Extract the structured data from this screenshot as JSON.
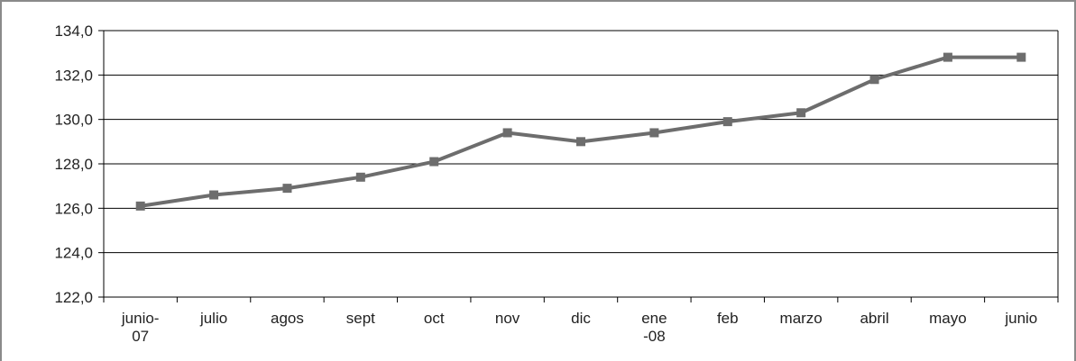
{
  "chart_data": {
    "type": "line",
    "title": "",
    "xlabel": "",
    "ylabel": "",
    "categories": [
      [
        "junio-",
        "07"
      ],
      [
        "julio"
      ],
      [
        "agos"
      ],
      [
        "sept"
      ],
      [
        "oct"
      ],
      [
        "nov"
      ],
      [
        "dic"
      ],
      [
        "ene",
        "-08"
      ],
      [
        "feb"
      ],
      [
        "marzo"
      ],
      [
        "abril"
      ],
      [
        "mayo"
      ],
      [
        "junio"
      ]
    ],
    "series": [
      {
        "values": [
          126.1,
          126.6,
          126.9,
          127.4,
          128.1,
          129.4,
          129.0,
          129.4,
          129.9,
          130.3,
          131.8,
          132.8,
          132.8
        ],
        "color": "#6d6d6d",
        "marker": "square"
      }
    ],
    "ylim": [
      122,
      134
    ],
    "yticks": [
      "122,0",
      "124,0",
      "126,0",
      "128,0",
      "130,0",
      "132,0",
      "134,0"
    ],
    "ytick_values": [
      122,
      124,
      126,
      128,
      130,
      132,
      134
    ],
    "grid": true,
    "legend": "none"
  }
}
